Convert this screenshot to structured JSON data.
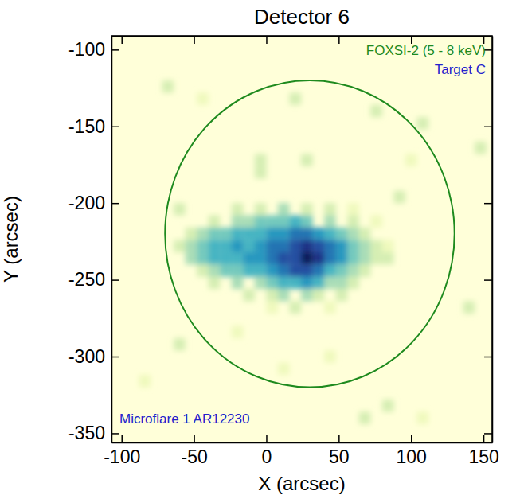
{
  "chart_data": {
    "type": "heatmap",
    "title": "Detector 6",
    "x_label": "X (arcsec)",
    "y_label": "Y (arcsec)",
    "xlim": [
      -107,
      156
    ],
    "ylim": [
      -356,
      -91
    ],
    "xticks": [
      -100,
      -50,
      0,
      50,
      100,
      150
    ],
    "yticks": [
      -350,
      -300,
      -250,
      -200,
      -150,
      -100
    ],
    "zlim": [
      0,
      10
    ],
    "cell_size": 8,
    "cells": [
      [
        -20,
        -204,
        2
      ],
      [
        -4,
        -204,
        2
      ],
      [
        12,
        -204,
        3
      ],
      [
        28,
        -204,
        2
      ],
      [
        44,
        -204,
        2
      ],
      [
        60,
        -204,
        1
      ],
      [
        -36,
        -212,
        2
      ],
      [
        -20,
        -212,
        3
      ],
      [
        -12,
        -212,
        3
      ],
      [
        -4,
        -212,
        4
      ],
      [
        4,
        -212,
        4
      ],
      [
        12,
        -212,
        4
      ],
      [
        20,
        -212,
        5
      ],
      [
        28,
        -212,
        4
      ],
      [
        44,
        -212,
        3
      ],
      [
        60,
        -212,
        2
      ],
      [
        76,
        -212,
        1
      ],
      [
        -52,
        -220,
        2
      ],
      [
        -44,
        -220,
        3
      ],
      [
        -36,
        -220,
        4
      ],
      [
        -28,
        -220,
        4
      ],
      [
        -20,
        -220,
        5
      ],
      [
        -12,
        -220,
        5
      ],
      [
        -4,
        -220,
        5
      ],
      [
        4,
        -220,
        6
      ],
      [
        12,
        -220,
        6
      ],
      [
        20,
        -220,
        7
      ],
      [
        28,
        -220,
        7
      ],
      [
        36,
        -220,
        6
      ],
      [
        44,
        -220,
        5
      ],
      [
        52,
        -220,
        4
      ],
      [
        60,
        -220,
        3
      ],
      [
        68,
        -220,
        2
      ],
      [
        -60,
        -228,
        2
      ],
      [
        -52,
        -228,
        3
      ],
      [
        -44,
        -228,
        4
      ],
      [
        -36,
        -228,
        5
      ],
      [
        -28,
        -228,
        5
      ],
      [
        -20,
        -228,
        6
      ],
      [
        -12,
        -228,
        5
      ],
      [
        -4,
        -228,
        6
      ],
      [
        4,
        -228,
        7
      ],
      [
        12,
        -228,
        7
      ],
      [
        20,
        -228,
        8
      ],
      [
        28,
        -228,
        9
      ],
      [
        36,
        -228,
        8
      ],
      [
        44,
        -228,
        7
      ],
      [
        52,
        -228,
        6
      ],
      [
        60,
        -228,
        4
      ],
      [
        68,
        -228,
        3
      ],
      [
        76,
        -228,
        2
      ],
      [
        84,
        -228,
        1
      ],
      [
        -52,
        -236,
        3
      ],
      [
        -44,
        -236,
        4
      ],
      [
        -36,
        -236,
        5
      ],
      [
        -28,
        -236,
        5
      ],
      [
        -20,
        -236,
        5
      ],
      [
        -12,
        -236,
        6
      ],
      [
        -4,
        -236,
        6
      ],
      [
        4,
        -236,
        7
      ],
      [
        12,
        -236,
        8
      ],
      [
        20,
        -236,
        8
      ],
      [
        28,
        -236,
        10
      ],
      [
        36,
        -236,
        9
      ],
      [
        44,
        -236,
        7
      ],
      [
        52,
        -236,
        6
      ],
      [
        60,
        -236,
        4
      ],
      [
        68,
        -236,
        3
      ],
      [
        76,
        -236,
        2
      ],
      [
        84,
        -236,
        2
      ],
      [
        -44,
        -244,
        2
      ],
      [
        -36,
        -244,
        3
      ],
      [
        -28,
        -244,
        4
      ],
      [
        -20,
        -244,
        4
      ],
      [
        -12,
        -244,
        5
      ],
      [
        -4,
        -244,
        5
      ],
      [
        4,
        -244,
        6
      ],
      [
        12,
        -244,
        7
      ],
      [
        20,
        -244,
        8
      ],
      [
        28,
        -244,
        8
      ],
      [
        36,
        -244,
        7
      ],
      [
        44,
        -244,
        5
      ],
      [
        52,
        -244,
        4
      ],
      [
        60,
        -244,
        3
      ],
      [
        68,
        -244,
        2
      ],
      [
        -36,
        -252,
        2
      ],
      [
        -20,
        -252,
        3
      ],
      [
        -4,
        -252,
        3
      ],
      [
        4,
        -252,
        4
      ],
      [
        12,
        -252,
        5
      ],
      [
        20,
        -252,
        5
      ],
      [
        28,
        -252,
        6
      ],
      [
        36,
        -252,
        5
      ],
      [
        44,
        -252,
        3
      ],
      [
        52,
        -252,
        3
      ],
      [
        60,
        -252,
        2
      ],
      [
        -12,
        -260,
        2
      ],
      [
        4,
        -260,
        2
      ],
      [
        12,
        -260,
        3
      ],
      [
        28,
        -260,
        3
      ],
      [
        36,
        -260,
        2
      ],
      [
        52,
        -260,
        2
      ],
      [
        4,
        -268,
        1
      ],
      [
        20,
        -268,
        2
      ],
      [
        44,
        -268,
        1
      ],
      [
        -68,
        -124,
        2
      ],
      [
        -44,
        -132,
        1
      ],
      [
        20,
        -132,
        2
      ],
      [
        76,
        -140,
        2
      ],
      [
        108,
        -148,
        2
      ],
      [
        148,
        -164,
        2
      ],
      [
        -4,
        -172,
        2
      ],
      [
        28,
        -172,
        2
      ],
      [
        -4,
        -180,
        2
      ],
      [
        100,
        -172,
        1
      ],
      [
        92,
        -196,
        2
      ],
      [
        -60,
        -204,
        2
      ],
      [
        140,
        -268,
        2
      ],
      [
        -20,
        -284,
        1
      ],
      [
        -60,
        -292,
        2
      ],
      [
        44,
        -300,
        1
      ],
      [
        12,
        -308,
        1
      ],
      [
        -84,
        -316,
        1
      ],
      [
        84,
        -332,
        2
      ],
      [
        68,
        -340,
        2
      ],
      [
        108,
        -340,
        1
      ]
    ],
    "circle": {
      "center": [
        30,
        -220
      ],
      "radius": 100,
      "color": "#1e8a1e"
    },
    "annotations": [
      {
        "text": "FOXSI-2 (5 - 8 keV)",
        "color": "#1e8a1e"
      },
      {
        "text": "Target C",
        "color": "#2222cc"
      },
      {
        "text": "Microflare 1 AR12230",
        "color": "#2222cc"
      }
    ]
  }
}
